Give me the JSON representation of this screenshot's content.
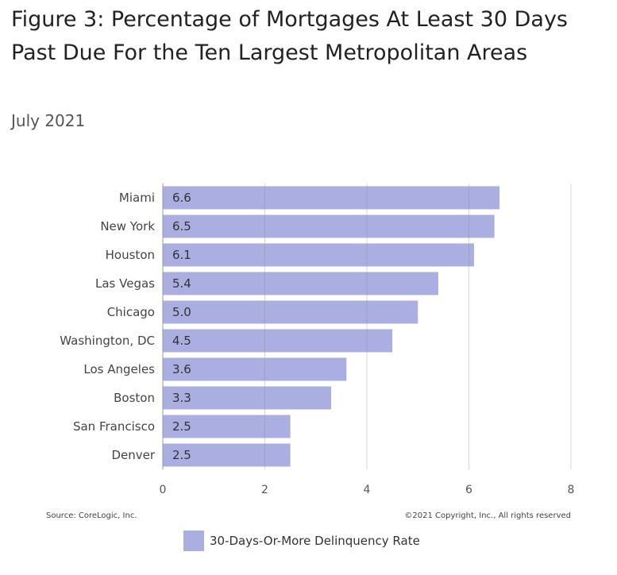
{
  "page": {
    "title": "Figure 3: Percentage of Mortgages At Least 30 Days Past Due For the Ten Largest Metropolitan Areas",
    "subtitle": "July 2021",
    "source": "Source: CoreLogic, Inc.",
    "copyright": "©2021 Copyright, Inc., All rights reserved"
  },
  "chart_data": {
    "type": "bar",
    "orientation": "horizontal",
    "categories": [
      "Miami",
      "New York",
      "Houston",
      "Las Vegas",
      "Chicago",
      "Washington, DC",
      "Los Angeles",
      "Boston",
      "San Francisco",
      "Denver"
    ],
    "series": [
      {
        "name": "30-Days-Or-More Delinquency Rate",
        "values": [
          6.6,
          6.5,
          6.1,
          5.4,
          5.0,
          4.5,
          3.6,
          3.3,
          2.5,
          2.5
        ],
        "labels": [
          "6.6",
          "6.5",
          "6.1",
          "5.4",
          "5.0",
          "4.5",
          "3.6",
          "3.3",
          "2.5",
          "2.5"
        ],
        "color": "#aaaee0"
      }
    ],
    "xlim": [
      0,
      8
    ],
    "xticks": [
      0,
      2,
      4,
      6,
      8
    ],
    "grid": true,
    "legend_position": "bottom"
  }
}
